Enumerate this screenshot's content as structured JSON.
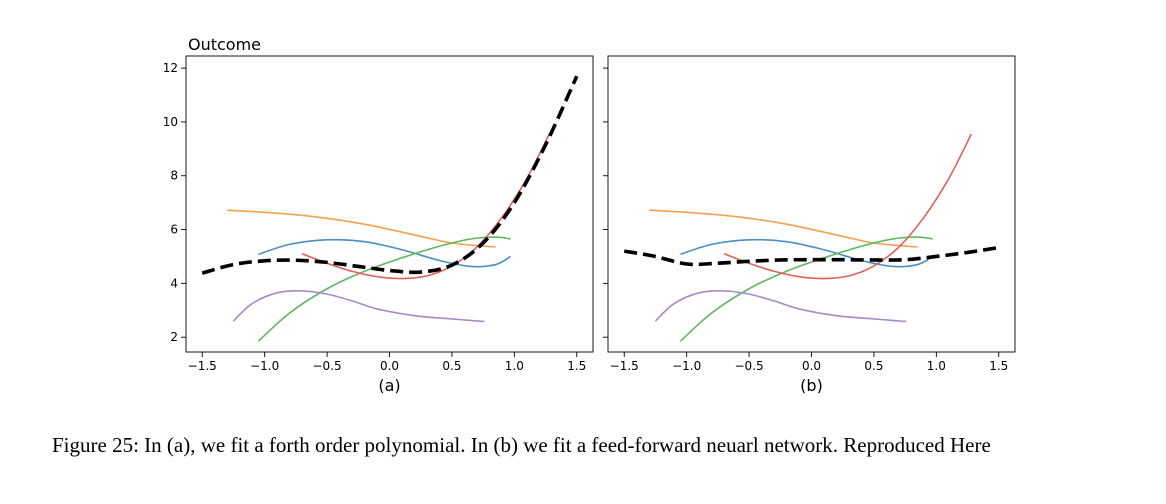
{
  "figure": {
    "caption": "Figure 25: In (a), we fit a forth order polynomial.  In (b) we fit a feed-forward neuarl network. Reproduced Here"
  },
  "colors": {
    "blue": "#4a90c4",
    "orange": "#f5a04e",
    "green": "#5fb85f",
    "red": "#e0605a",
    "purple": "#a989c9",
    "fit": "#000000"
  },
  "chart_data": [
    {
      "type": "line",
      "panel_label": "(a)",
      "ylabel": "Outcome",
      "xlim": [
        -1.63,
        1.63
      ],
      "ylim": [
        1.45,
        12.45
      ],
      "xticks": [
        -1.5,
        -1.0,
        -0.5,
        0.0,
        0.5,
        1.0,
        1.5
      ],
      "yticks": [
        2,
        4,
        6,
        8,
        10,
        12
      ],
      "xtick_labels": [
        "−1.5",
        "−1.0",
        "−0.5",
        "0.0",
        "0.5",
        "1.0",
        "1.5"
      ],
      "ytick_labels": [
        "2",
        "4",
        "6",
        "8",
        "10",
        "12"
      ],
      "grid": false,
      "series": [
        {
          "color": "orange",
          "x": [
            -1.3,
            -1.0,
            -0.6,
            -0.2,
            0.2,
            0.5,
            0.85
          ],
          "y": [
            6.72,
            6.64,
            6.48,
            6.2,
            5.8,
            5.5,
            5.35
          ]
        },
        {
          "color": "blue",
          "x": [
            -1.05,
            -0.8,
            -0.5,
            -0.2,
            0.1,
            0.4,
            0.65,
            0.85,
            0.97
          ],
          "y": [
            5.08,
            5.45,
            5.62,
            5.55,
            5.25,
            4.85,
            4.63,
            4.7,
            5.0
          ]
        },
        {
          "color": "green",
          "x": [
            -1.05,
            -0.8,
            -0.5,
            -0.2,
            0.1,
            0.4,
            0.65,
            0.85,
            0.97
          ],
          "y": [
            1.85,
            2.9,
            3.8,
            4.45,
            4.95,
            5.38,
            5.65,
            5.72,
            5.65
          ]
        },
        {
          "color": "red",
          "x": [
            -0.7,
            -0.5,
            -0.3,
            -0.1,
            0.1,
            0.3,
            0.5,
            0.7,
            0.9,
            1.1,
            1.28
          ],
          "y": [
            5.1,
            4.75,
            4.45,
            4.25,
            4.18,
            4.28,
            4.65,
            5.35,
            6.45,
            7.9,
            9.55
          ]
        },
        {
          "color": "purple",
          "x": [
            -1.25,
            -1.1,
            -0.9,
            -0.7,
            -0.5,
            -0.3,
            -0.1,
            0.2,
            0.5,
            0.76
          ],
          "y": [
            2.6,
            3.25,
            3.65,
            3.72,
            3.6,
            3.35,
            3.05,
            2.8,
            2.68,
            2.58
          ]
        },
        {
          "color": "fit",
          "dashed": true,
          "x": [
            -1.5,
            -1.25,
            -1.0,
            -0.75,
            -0.5,
            -0.25,
            0.0,
            0.25,
            0.5,
            0.75,
            1.0,
            1.25,
            1.5
          ],
          "y": [
            4.38,
            4.7,
            4.84,
            4.86,
            4.78,
            4.63,
            4.48,
            4.42,
            4.68,
            5.5,
            7.0,
            9.15,
            11.7
          ]
        }
      ]
    },
    {
      "type": "line",
      "panel_label": "(b)",
      "xlim": [
        -1.63,
        1.63
      ],
      "ylim": [
        1.45,
        12.45
      ],
      "xticks": [
        -1.5,
        -1.0,
        -0.5,
        0.0,
        0.5,
        1.0,
        1.5
      ],
      "xtick_labels": [
        "−1.5",
        "−1.0",
        "−0.5",
        "0.0",
        "0.5",
        "1.0",
        "1.5"
      ],
      "grid": false,
      "series": [
        {
          "color": "orange",
          "x": [
            -1.3,
            -1.0,
            -0.6,
            -0.2,
            0.2,
            0.5,
            0.85
          ],
          "y": [
            6.72,
            6.64,
            6.48,
            6.2,
            5.8,
            5.5,
            5.35
          ]
        },
        {
          "color": "blue",
          "x": [
            -1.05,
            -0.8,
            -0.5,
            -0.2,
            0.1,
            0.4,
            0.65,
            0.85,
            0.97
          ],
          "y": [
            5.08,
            5.45,
            5.62,
            5.55,
            5.25,
            4.85,
            4.63,
            4.7,
            5.0
          ]
        },
        {
          "color": "green",
          "x": [
            -1.05,
            -0.8,
            -0.5,
            -0.2,
            0.1,
            0.4,
            0.65,
            0.85,
            0.97
          ],
          "y": [
            1.85,
            2.9,
            3.8,
            4.45,
            4.95,
            5.38,
            5.65,
            5.72,
            5.65
          ]
        },
        {
          "color": "red",
          "x": [
            -0.7,
            -0.5,
            -0.3,
            -0.1,
            0.1,
            0.3,
            0.5,
            0.7,
            0.9,
            1.1,
            1.28
          ],
          "y": [
            5.1,
            4.75,
            4.45,
            4.25,
            4.18,
            4.28,
            4.65,
            5.35,
            6.45,
            7.9,
            9.55
          ]
        },
        {
          "color": "purple",
          "x": [
            -1.25,
            -1.1,
            -0.9,
            -0.7,
            -0.5,
            -0.3,
            -0.1,
            0.2,
            0.5,
            0.76
          ],
          "y": [
            2.6,
            3.25,
            3.65,
            3.72,
            3.6,
            3.35,
            3.05,
            2.8,
            2.68,
            2.58
          ]
        },
        {
          "color": "fit",
          "dashed": true,
          "x": [
            -1.5,
            -1.25,
            -1.0,
            -0.75,
            -0.5,
            -0.25,
            0.0,
            0.25,
            0.5,
            0.75,
            1.0,
            1.25,
            1.5
          ],
          "y": [
            5.2,
            5.0,
            4.72,
            4.75,
            4.82,
            4.87,
            4.88,
            4.88,
            4.87,
            4.88,
            5.0,
            5.15,
            5.33
          ]
        }
      ]
    }
  ]
}
